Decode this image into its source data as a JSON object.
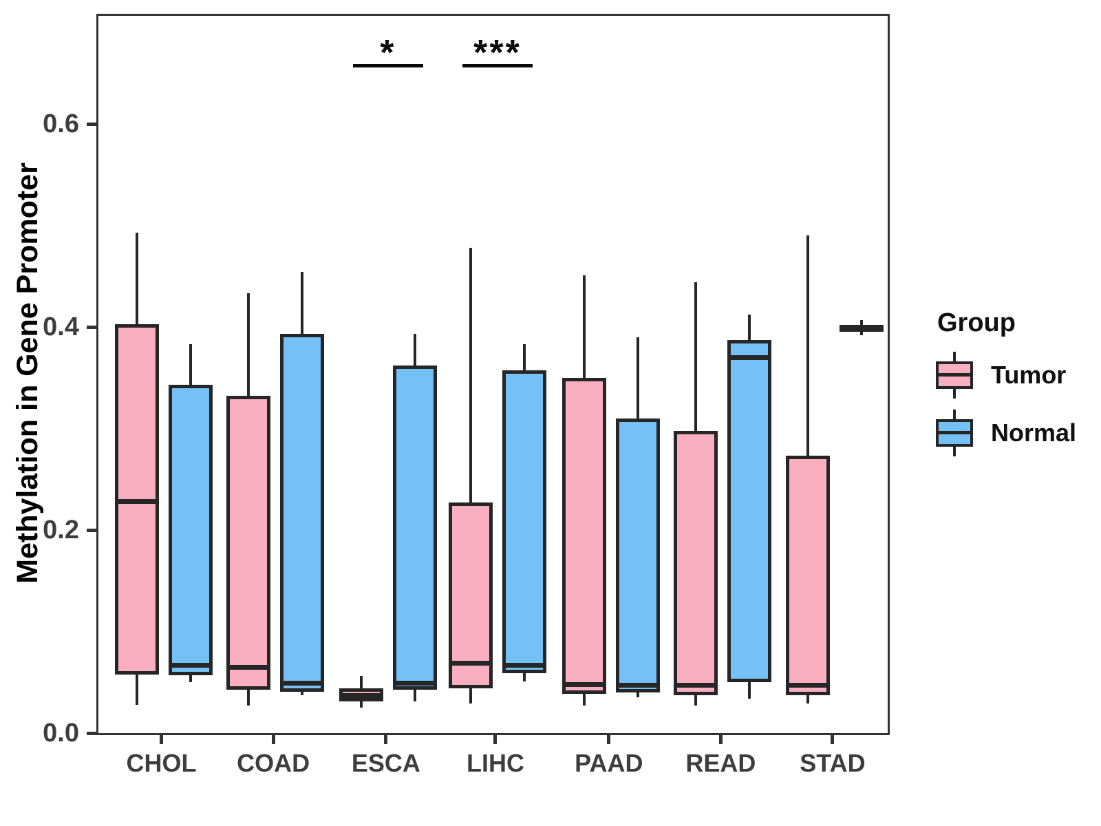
{
  "chart_data": {
    "type": "boxplot",
    "title": "",
    "xlabel": "",
    "ylabel": "Methylation in Gene Promoter",
    "ylim": [
      0,
      0.71
    ],
    "grid": false,
    "yticks": [
      {
        "label": "0.0",
        "value": 0.0
      },
      {
        "label": "0.2",
        "value": 0.2
      },
      {
        "label": "0.4",
        "value": 0.4
      },
      {
        "label": "0.6",
        "value": 0.6
      }
    ],
    "categories": [
      "CHOL",
      "COAD",
      "ESCA",
      "LIHC",
      "PAAD",
      "READ",
      "STAD"
    ],
    "groups": [
      "Tumor",
      "Normal"
    ],
    "colors": {
      "Tumor": "#FAAFC1",
      "Normal": "#75C1F5",
      "stroke": "#262626",
      "frame": "#333333"
    },
    "legend": {
      "title": "Group",
      "position": "right"
    },
    "boxes": [
      {
        "category": "CHOL",
        "group": "Tumor",
        "whislo": 0.03,
        "q1": 0.06,
        "med": 0.23,
        "q3": 0.405,
        "whishi": 0.495
      },
      {
        "category": "CHOL",
        "group": "Normal",
        "whislo": 0.052,
        "q1": 0.059,
        "med": 0.069,
        "q3": 0.345,
        "whishi": 0.385
      },
      {
        "category": "COAD",
        "group": "Tumor",
        "whislo": 0.029,
        "q1": 0.045,
        "med": 0.067,
        "q3": 0.334,
        "whishi": 0.435
      },
      {
        "category": "COAD",
        "group": "Normal",
        "whislo": 0.039,
        "q1": 0.043,
        "med": 0.051,
        "q3": 0.395,
        "whishi": 0.456
      },
      {
        "category": "ESCA",
        "group": "Tumor",
        "whislo": 0.027,
        "q1": 0.033,
        "med": 0.039,
        "q3": 0.046,
        "whishi": 0.058
      },
      {
        "category": "ESCA",
        "group": "Normal",
        "whislo": 0.033,
        "q1": 0.045,
        "med": 0.051,
        "q3": 0.364,
        "whishi": 0.395
      },
      {
        "category": "LIHC",
        "group": "Tumor",
        "whislo": 0.031,
        "q1": 0.046,
        "med": 0.071,
        "q3": 0.229,
        "whishi": 0.48
      },
      {
        "category": "LIHC",
        "group": "Normal",
        "whislo": 0.053,
        "q1": 0.061,
        "med": 0.069,
        "q3": 0.359,
        "whishi": 0.385
      },
      {
        "category": "PAAD",
        "group": "Tumor",
        "whislo": 0.029,
        "q1": 0.041,
        "med": 0.05,
        "q3": 0.352,
        "whishi": 0.453
      },
      {
        "category": "PAAD",
        "group": "Normal",
        "whislo": 0.037,
        "q1": 0.042,
        "med": 0.049,
        "q3": 0.312,
        "whishi": 0.392
      },
      {
        "category": "READ",
        "group": "Tumor",
        "whislo": 0.029,
        "q1": 0.039,
        "med": 0.049,
        "q3": 0.3,
        "whishi": 0.446
      },
      {
        "category": "READ",
        "group": "Normal",
        "whislo": 0.036,
        "q1": 0.052,
        "med": 0.372,
        "q3": 0.389,
        "whishi": 0.414
      },
      {
        "category": "STAD",
        "group": "Tumor",
        "whislo": 0.031,
        "q1": 0.039,
        "med": 0.049,
        "q3": 0.275,
        "whishi": 0.492
      },
      {
        "category": "STAD",
        "group": "Normal",
        "whislo": 0.394,
        "q1": 0.397,
        "med": 0.401,
        "q3": 0.404,
        "whishi": 0.409
      }
    ],
    "annotations": [
      {
        "category": "ESCA",
        "label": "*"
      },
      {
        "category": "LIHC",
        "label": "***"
      }
    ]
  }
}
